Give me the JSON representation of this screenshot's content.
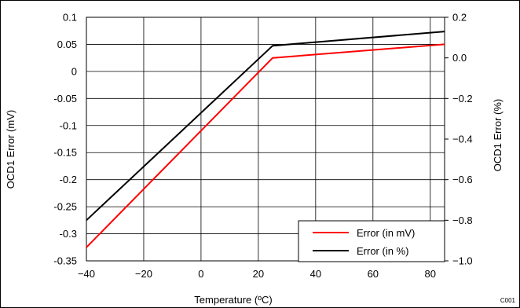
{
  "chart_data": {
    "type": "line",
    "xlabel": "Temperature (ºC)",
    "ylabel": "OCD1 Error (mV)",
    "y2label": "OCD1 Error (%)",
    "x_ticks": [
      "-40",
      "-20",
      "0",
      "20",
      "40",
      "60",
      "80"
    ],
    "y_ticks": [
      "0.1",
      "0.05",
      "0",
      "-0.05",
      "-0.1",
      "-0.15",
      "-0.2",
      "-0.25",
      "-0.3",
      "-0.35"
    ],
    "y2_ticks": [
      "0.2",
      "0.0",
      "-0.2",
      "-0.4",
      "-0.6",
      "-0.8",
      "-1.0"
    ],
    "xlim": [
      -40,
      85
    ],
    "ylim": [
      -0.35,
      0.1
    ],
    "y2lim": [
      -1.0,
      0.2
    ],
    "grid": true,
    "legend_position": "bottom-right",
    "series": [
      {
        "name": "Error (in mV)",
        "axis": "left",
        "color": "#ff0000",
        "x": [
          -40,
          25,
          85
        ],
        "y": [
          -0.325,
          0.025,
          0.05
        ]
      },
      {
        "name": "Error (in %)",
        "axis": "right",
        "color": "#000000",
        "x": [
          -40,
          25,
          85
        ],
        "y": [
          -0.8,
          0.06,
          0.13
        ]
      }
    ],
    "annotation": "C001"
  }
}
